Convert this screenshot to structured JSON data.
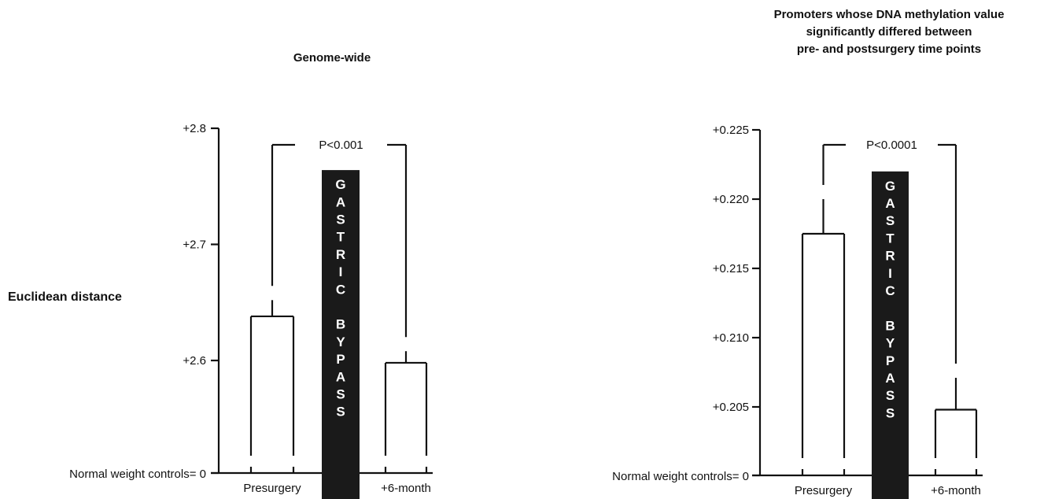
{
  "y_axis_label": "Euclidean distance",
  "intervention_label": "GASTRIC BYPASS",
  "colors": {
    "ink": "#111111",
    "bar_fill": "#ffffff",
    "intervention_fill": "#1a1a1a",
    "intervention_text": "#ffffff"
  },
  "chart_data": [
    {
      "type": "bar",
      "title": [
        "Genome-wide"
      ],
      "categories": [
        "Presurgery",
        "+6-month"
      ],
      "values": [
        2.638,
        2.598
      ],
      "error_upper": [
        2.652,
        2.608
      ],
      "baseline_label": "Normal weight controls= 0",
      "yticks": [
        {
          "value": 2.6,
          "label": "+2.6"
        },
        {
          "value": 2.7,
          "label": "+2.7"
        },
        {
          "value": 2.8,
          "label": "+2.8"
        }
      ],
      "ylim": [
        2.5,
        2.8
      ],
      "axis_break": true,
      "p_value": "P<0.001",
      "intervention_top": 2.764
    },
    {
      "type": "bar",
      "title": [
        "Promoters whose DNA methylation value",
        "significantly differed between",
        "pre- and postsurgery time points"
      ],
      "categories": [
        "Presurgery",
        "+6-month"
      ],
      "values": [
        0.2175,
        0.2048
      ],
      "error_upper": [
        0.22,
        0.2071
      ],
      "baseline_label": "Normal weight controls= 0",
      "yticks": [
        {
          "value": 0.205,
          "label": "+0.205"
        },
        {
          "value": 0.21,
          "label": "+0.210"
        },
        {
          "value": 0.215,
          "label": "+0.215"
        },
        {
          "value": 0.22,
          "label": "+0.220"
        },
        {
          "value": 0.225,
          "label": "+0.225"
        }
      ],
      "ylim": [
        0.2,
        0.225
      ],
      "axis_break": true,
      "p_value": "P<0.0001",
      "intervention_top": 0.222
    }
  ]
}
